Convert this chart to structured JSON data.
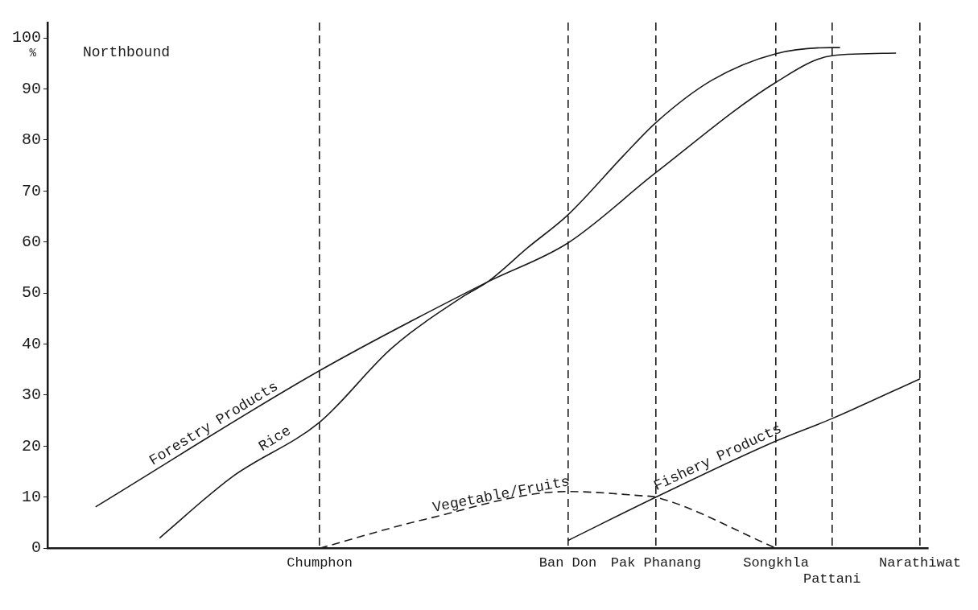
{
  "chart_data": {
    "type": "line",
    "ylabel": "%",
    "annotations": [
      "Northbound"
    ],
    "ylim": [
      0,
      103
    ],
    "yticks": [
      0,
      10,
      20,
      30,
      40,
      50,
      60,
      70,
      80,
      90,
      100
    ],
    "grid": "x",
    "categories": [
      null,
      null,
      null,
      null,
      null,
      null,
      null,
      null,
      null,
      null,
      null,
      null,
      null,
      null,
      null,
      null,
      null,
      null,
      null,
      null,
      null,
      null,
      null,
      null,
      null,
      null,
      null,
      null,
      null,
      null,
      null,
      null,
      null,
      null,
      "Chumphon",
      null,
      null,
      null,
      null,
      null,
      null,
      null,
      null,
      null,
      null,
      null,
      null,
      null,
      null,
      null,
      null,
      null,
      null,
      null,
      null,
      null,
      null,
      null,
      null,
      null,
      null,
      null,
      null,
      null,
      null,
      "Ban Don",
      null,
      null,
      null,
      null,
      null,
      null,
      null,
      null,
      null,
      null,
      "Pak Phanang",
      null,
      null,
      null,
      null,
      null,
      null,
      null,
      null,
      null,
      null,
      null,
      null,
      null,
      null,
      "Songkhla",
      null,
      null,
      null,
      null,
      null,
      null,
      "Pattani",
      null,
      null,
      null,
      null,
      null,
      null,
      null,
      null,
      null,
      null,
      "Narathiwat",
      null
    ],
    "series": [
      {
        "name": "Forestry Products",
        "color": "#1a1a1a",
        "line_style": "solid",
        "values": [
          null,
          null,
          null,
          null,
          null,
          null,
          8.1,
          null,
          null,
          null,
          null,
          null,
          null,
          null,
          null,
          null,
          null,
          null,
          null,
          null,
          null,
          null,
          null,
          null,
          null,
          null,
          null,
          null,
          null,
          null,
          null,
          null,
          null,
          null,
          34.8,
          null,
          null,
          null,
          null,
          null,
          null,
          null,
          null,
          null,
          null,
          null,
          null,
          null,
          null,
          null,
          null,
          null,
          null,
          null,
          null,
          52.2,
          null,
          null,
          null,
          null,
          null,
          null,
          null,
          null,
          null,
          59.8,
          null,
          null,
          null,
          null,
          null,
          null,
          null,
          null,
          null,
          null,
          73.6,
          null,
          null,
          null,
          null,
          null,
          null,
          null,
          null,
          null,
          null,
          null,
          null,
          null,
          null,
          91.3,
          null,
          null,
          null,
          null,
          null,
          null,
          96.5,
          null,
          null,
          null,
          null,
          null,
          null,
          null,
          97,
          null,
          null,
          null,
          null
        ]
      },
      {
        "name": "Rice",
        "color": "#1a1a1a",
        "line_style": "solid",
        "values": [
          null,
          null,
          null,
          null,
          null,
          null,
          null,
          null,
          null,
          null,
          null,
          null,
          null,
          null,
          2,
          null,
          null,
          null,
          null,
          null,
          null,
          null,
          null,
          13.9,
          null,
          null,
          null,
          null,
          null,
          null,
          null,
          null,
          null,
          null,
          24.7,
          null,
          null,
          null,
          null,
          null,
          null,
          null,
          null,
          39.2,
          null,
          null,
          null,
          null,
          null,
          null,
          null,
          null,
          49.4,
          null,
          null,
          52.2,
          null,
          null,
          null,
          null,
          58.9,
          null,
          null,
          null,
          null,
          65.3,
          null,
          null,
          null,
          null,
          null,
          null,
          77,
          null,
          null,
          null,
          83.4,
          null,
          null,
          null,
          null,
          null,
          null,
          91.7,
          null,
          null,
          null,
          null,
          null,
          null,
          null,
          96.9,
          null,
          null,
          null,
          null,
          null,
          null,
          98.1,
          98.1,
          null,
          null,
          null,
          null,
          null,
          null,
          null,
          null,
          null,
          null,
          null
        ]
      },
      {
        "name": "Vegetable/Fruits",
        "color": "#1a1a1a",
        "line_style": "dashed",
        "values": [
          null,
          null,
          null,
          null,
          null,
          null,
          null,
          null,
          null,
          null,
          null,
          null,
          null,
          null,
          null,
          null,
          null,
          null,
          null,
          null,
          null,
          null,
          null,
          null,
          null,
          null,
          null,
          null,
          null,
          null,
          null,
          null,
          null,
          null,
          0,
          null,
          null,
          null,
          null,
          null,
          null,
          null,
          null,
          null,
          null,
          null,
          null,
          5.6,
          null,
          null,
          null,
          null,
          null,
          null,
          null,
          null,
          null,
          null,
          null,
          null,
          null,
          null,
          null,
          null,
          null,
          11.1,
          null,
          null,
          null,
          null,
          null,
          null,
          null,
          null,
          10.3,
          null,
          10,
          null,
          null,
          null,
          null,
          null,
          null,
          null,
          null,
          null,
          null,
          null,
          null,
          null,
          null,
          0,
          null,
          null,
          null,
          null,
          null,
          null,
          null,
          null,
          null,
          null,
          null,
          null,
          null,
          null,
          null,
          null,
          null,
          null,
          null
        ]
      },
      {
        "name": "Fishery Products",
        "color": "#1a1a1a",
        "line_style": "solid",
        "values": [
          null,
          null,
          null,
          null,
          null,
          null,
          null,
          null,
          null,
          null,
          null,
          null,
          null,
          null,
          null,
          null,
          null,
          null,
          null,
          null,
          null,
          null,
          null,
          null,
          null,
          null,
          null,
          null,
          null,
          null,
          null,
          null,
          null,
          null,
          null,
          null,
          null,
          null,
          null,
          null,
          null,
          null,
          null,
          null,
          null,
          null,
          null,
          null,
          null,
          null,
          null,
          null,
          null,
          null,
          null,
          null,
          null,
          null,
          null,
          null,
          null,
          null,
          null,
          null,
          null,
          1.5,
          null,
          null,
          null,
          null,
          null,
          null,
          null,
          null,
          null,
          null,
          10,
          null,
          null,
          null,
          null,
          null,
          null,
          null,
          null,
          null,
          null,
          null,
          null,
          null,
          null,
          21,
          null,
          null,
          null,
          null,
          null,
          null,
          25.4,
          null,
          null,
          null,
          null,
          null,
          null,
          null,
          null,
          null,
          null,
          33.2,
          null
        ]
      }
    ]
  }
}
